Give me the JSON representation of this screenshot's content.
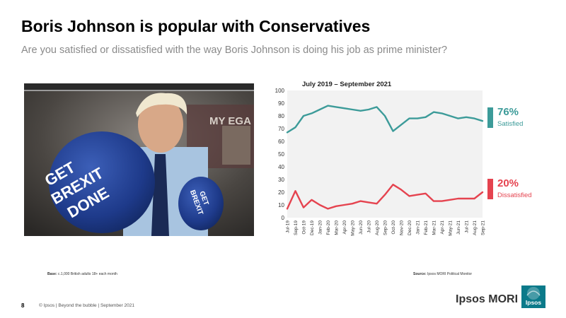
{
  "slide": {
    "title": "Boris Johnson is popular with Conservatives",
    "subtitle": "Are you satisfied or dissatisfied with the way Boris Johnson is doing his job as prime minister?",
    "page_number": "8",
    "footer": "© Ipsos | Beyond the bubble | September 2021",
    "base_label": "Base:",
    "base_text": "c.1,000 British adults 18+ each month",
    "source_label": "Source:",
    "source_text": "Ipsos MORI Political Monitor",
    "brand": "Ipsos MORI",
    "logo_text": "Ipsos"
  },
  "photo": {
    "glove_text_left": [
      "GET",
      "BREXIT",
      "DONE"
    ],
    "glove_text_right": [
      "GET",
      "BREXIT"
    ],
    "wall_text": "MY EGA"
  },
  "legend": {
    "satisfied_pct": "76%",
    "satisfied_label": "Satisfied",
    "dissatisfied_pct": "20%",
    "dissatisfied_label": "Dissatisfied"
  },
  "colors": {
    "satisfied": "#3c9b99",
    "dissatisfied": "#e5434f",
    "plot_bg": "#f2f2f2",
    "logo_bg": "#0b7a8a"
  },
  "chart_data": {
    "type": "line",
    "period_label": "July 2019 – September 2021",
    "ylim": [
      0,
      100
    ],
    "yticks": [
      0,
      10,
      20,
      30,
      40,
      50,
      60,
      70,
      80,
      90,
      100
    ],
    "grid": false,
    "legend": "right",
    "x": [
      "Jul-19",
      "Sep-19",
      "Oct-19",
      "Dec-19",
      "Jan-20",
      "Feb-20",
      "Mar-20",
      "Apr-20",
      "May-20",
      "Jun-20",
      "Jul-20",
      "Aug-20",
      "Sep-20",
      "Oct-20",
      "Nov-20",
      "Dec-20",
      "Jan-21",
      "Feb-21",
      "Mar-21",
      "Apr-21",
      "May-21",
      "Jun-21",
      "Jul-21",
      "Aug-21",
      "Sep-21"
    ],
    "series": [
      {
        "name": "Satisfied",
        "values": [
          67,
          71,
          80,
          82,
          85,
          88,
          87,
          86,
          85,
          84,
          85,
          87,
          80,
          68,
          73,
          78,
          78,
          79,
          83,
          82,
          80,
          78,
          79,
          78,
          76
        ]
      },
      {
        "name": "Dissatisfied",
        "values": [
          7,
          21,
          8,
          14,
          10,
          7,
          9,
          10,
          11,
          13,
          12,
          11,
          18,
          26,
          22,
          17,
          18,
          19,
          13,
          13,
          14,
          15,
          15,
          15,
          20
        ]
      }
    ]
  }
}
